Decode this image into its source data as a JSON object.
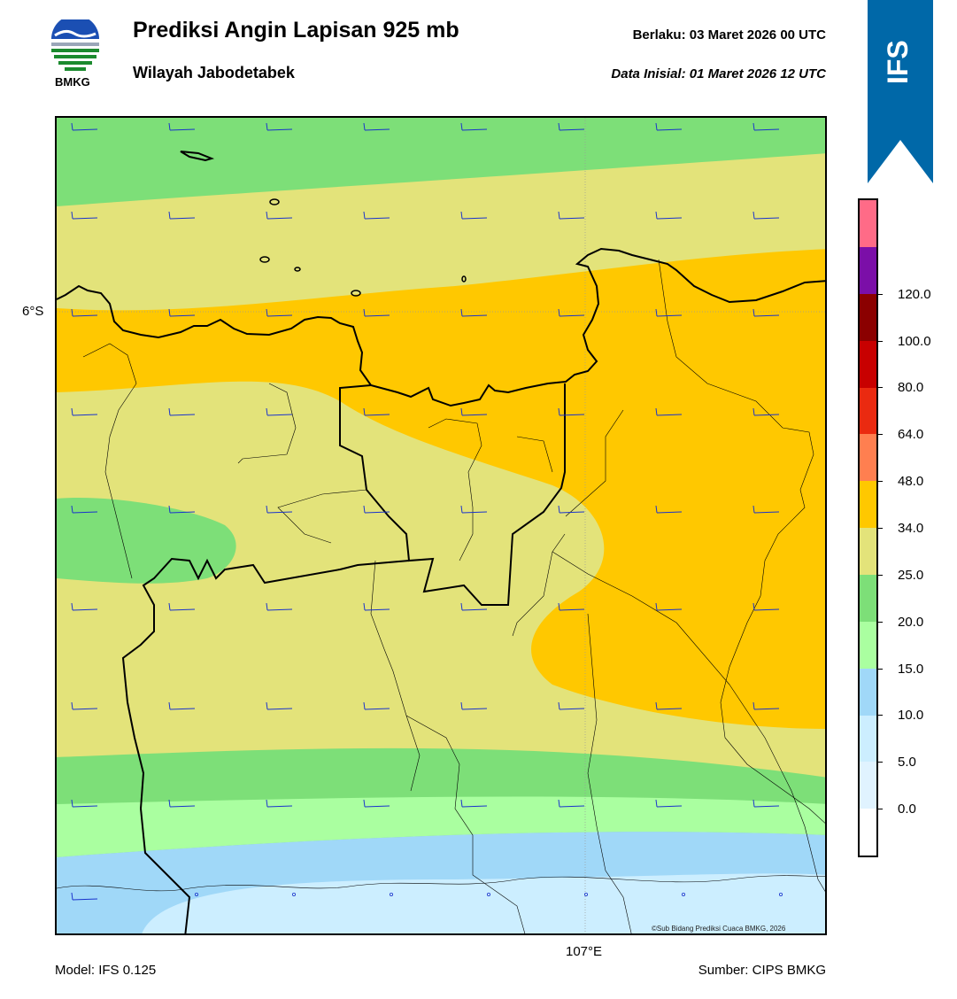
{
  "header": {
    "title": "Prediksi Angin Lapisan 925 mb",
    "subtitle": "Wilayah Jabodetabek",
    "valid_label": "Berlaku:  03 Maret 2026 00 UTC",
    "init_label": "Data Inisial:  01 Maret 2026 12 UTC",
    "logo_text": "BMKG"
  },
  "ribbon": {
    "text": "IFS",
    "color": "#0068a8"
  },
  "map": {
    "lat_label": "6°S",
    "lon_label": "107°E",
    "credit": "©Sub Bidang Prediksi Cuaca BMKG, 2026",
    "barb_color": "#1a33cc",
    "coast_color": "#000000"
  },
  "footer": {
    "model": "Model: IFS 0.125",
    "source": "Sumber: CIPS BMKG"
  },
  "colorbar": {
    "ticks": [
      "0.0",
      "5.0",
      "10.0",
      "15.0",
      "20.0",
      "25.0",
      "34.0",
      "48.0",
      "64.0",
      "80.0",
      "100.0",
      "120.0"
    ],
    "colors": [
      "#ffffff",
      "#e0f3ff",
      "#cceeff",
      "#a0d8f8",
      "#aaffa0",
      "#7ddf78",
      "#e3e37a",
      "#ffc800",
      "#ff7f50",
      "#ea2a10",
      "#c80000",
      "#8b0000",
      "#7b0fa8",
      "#ff6b87"
    ]
  }
}
